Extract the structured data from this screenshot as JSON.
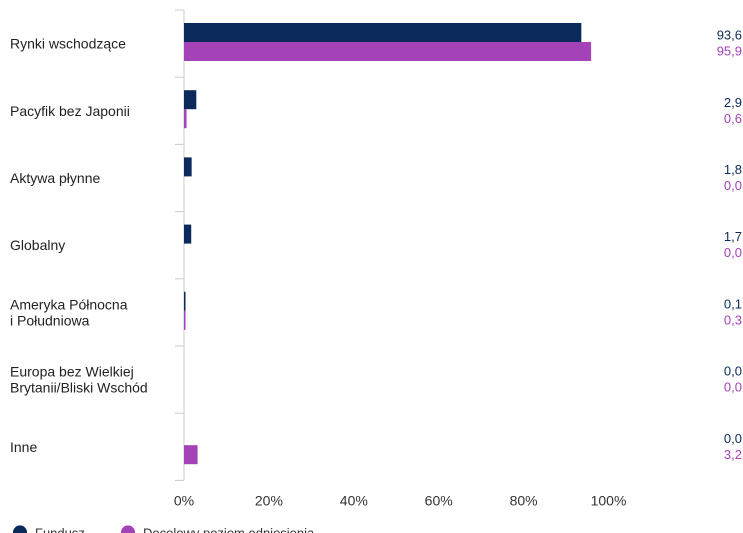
{
  "chart_data": {
    "type": "bar",
    "orientation": "horizontal",
    "categories": [
      [
        "Rynki wschodzące"
      ],
      [
        "Pacyfik bez Japonii"
      ],
      [
        "Aktywa płynne"
      ],
      [
        "Globalny"
      ],
      [
        "Ameryka Północna",
        "i Południowa"
      ],
      [
        "Europa bez Wielkiej",
        "Brytanii/Bliski Wschód"
      ],
      [
        "Inne"
      ]
    ],
    "series": [
      {
        "name": "Fundusz",
        "color": "#0b2a5b",
        "values": [
          93.6,
          2.9,
          1.8,
          1.7,
          0.1,
          0.0,
          0.0
        ],
        "labels": [
          "93,6",
          "2,9",
          "1,8",
          "1,7",
          "0,1",
          "0,0",
          "0,0"
        ]
      },
      {
        "name": "Docelowy poziom odniesienia",
        "color": "#a442b8",
        "values": [
          95.9,
          0.6,
          0.0,
          0.0,
          0.3,
          0.0,
          3.2
        ],
        "labels": [
          "95,9",
          "0,6",
          "0,0",
          "0,0",
          "0,3",
          "0,0",
          "3,2"
        ]
      }
    ],
    "xticks": [
      0,
      20,
      40,
      60,
      80,
      100
    ],
    "xtick_labels": [
      "0%",
      "20%",
      "40%",
      "60%",
      "80%",
      "100%"
    ],
    "xlim": [
      0,
      120
    ],
    "grid": false,
    "legend": "bottom-left"
  }
}
